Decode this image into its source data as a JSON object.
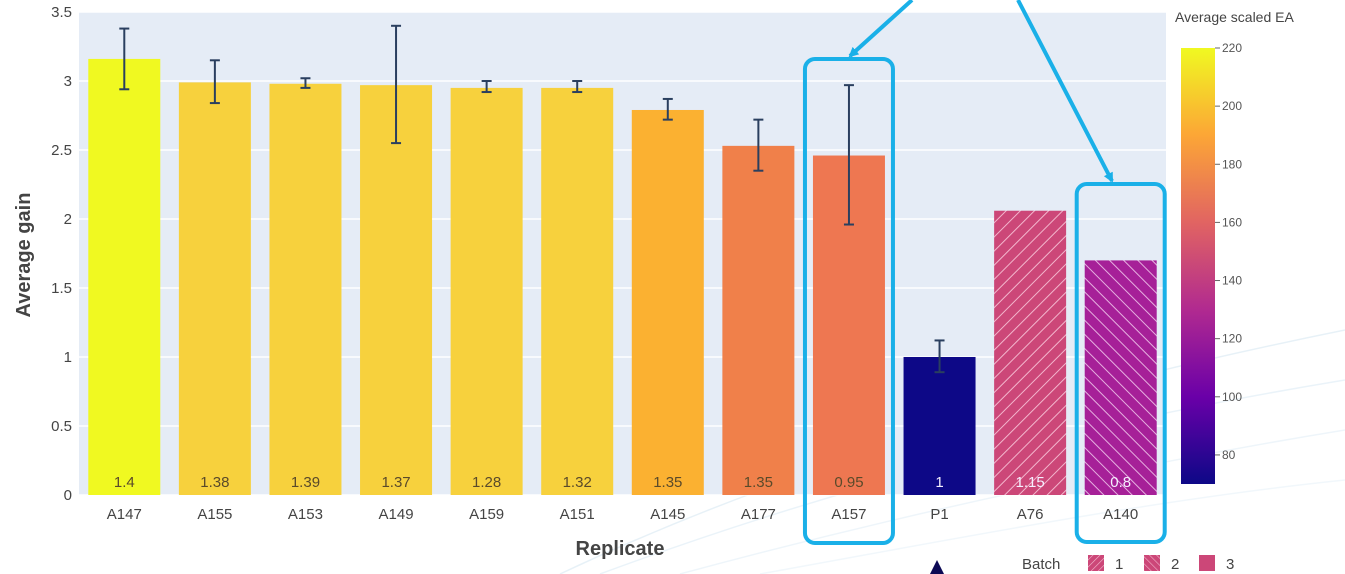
{
  "chart_data": {
    "type": "bar",
    "xlabel": "Replicate",
    "ylabel": "Average gain",
    "ylim": [
      0,
      3.5
    ],
    "yticks": [
      0,
      0.5,
      1,
      1.5,
      2,
      2.5,
      3,
      3.5
    ],
    "ytick_labels": [
      "0",
      "0.5",
      "1",
      "1.5",
      "2",
      "2.5",
      "3",
      "3.5"
    ],
    "grid": true,
    "categories": [
      "A147",
      "A155",
      "A153",
      "A149",
      "A159",
      "A151",
      "A145",
      "A177",
      "A157",
      "P1",
      "A76",
      "A140"
    ],
    "values": [
      3.16,
      2.99,
      2.98,
      2.97,
      2.95,
      2.95,
      2.79,
      2.53,
      2.46,
      1.0,
      2.06,
      1.7
    ],
    "error_low": [
      2.94,
      2.84,
      2.95,
      2.55,
      2.92,
      2.92,
      2.72,
      2.35,
      1.96,
      0.89,
      null,
      null
    ],
    "error_high": [
      3.38,
      3.15,
      3.02,
      3.4,
      3.0,
      3.0,
      2.87,
      2.72,
      2.97,
      1.12,
      null,
      null
    ],
    "data_labels": [
      "1.4",
      "1.38",
      "1.39",
      "1.37",
      "1.28",
      "1.32",
      "1.35",
      "1.35",
      "0.95",
      "1",
      "1.15",
      "0.8"
    ],
    "bar_colors": [
      "#f0f921",
      "#f7d13d",
      "#f7d13d",
      "#f7d13d",
      "#f7d13d",
      "#f7d13d",
      "#fbb131",
      "#f0804a",
      "#ee7751",
      "#0d0887",
      "#cc4778",
      "#a62098"
    ],
    "batch": [
      1,
      1,
      1,
      1,
      1,
      1,
      1,
      1,
      1,
      1,
      3,
      2
    ],
    "colorbar": {
      "title": "Average scaled EA",
      "range": [
        70,
        220
      ],
      "ticks": [
        "220",
        "200",
        "180",
        "160",
        "140",
        "120",
        "100",
        "80"
      ],
      "tick_values": [
        220,
        200,
        180,
        160,
        140,
        120,
        100,
        80
      ],
      "colors": [
        "#0d0887",
        "#6a00a8",
        "#b12a90",
        "#e16462",
        "#fca636",
        "#f0f921"
      ]
    },
    "legend": {
      "title": "Batch",
      "entries": [
        "1",
        "2",
        "3"
      ]
    },
    "highlighted": [
      "A157",
      "A140"
    ],
    "arrow_color": "#1ab0e8",
    "plot_bg": "#e5ecf6"
  }
}
